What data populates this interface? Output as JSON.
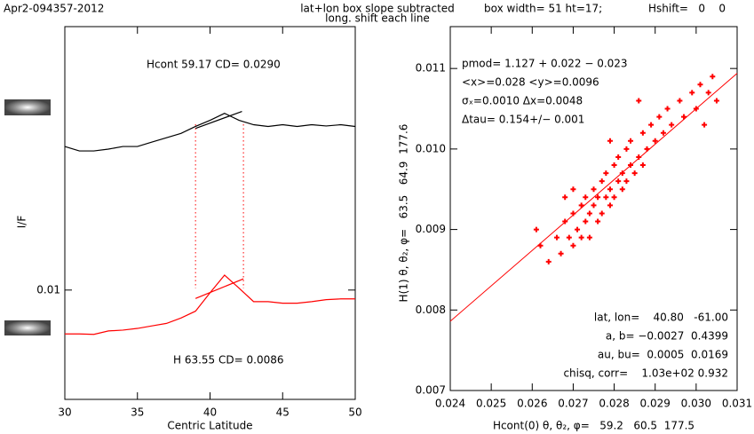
{
  "header": {
    "file": "Apr2-094357-2012",
    "method": "lat+lon box slope subtracted",
    "shift": "long. shift each line",
    "box": "box width= 51 ht=17;",
    "hshift": "Hshift=   0    0"
  },
  "chart_data": [
    {
      "type": "line",
      "xlabel": "Centric Latitude",
      "ylabel": "I/F",
      "log_y": true,
      "xlim": [
        30,
        50
      ],
      "xticks": [
        30,
        35,
        40,
        45,
        50
      ],
      "ylim": [
        0.0075,
        0.02
      ],
      "yticks": [
        0.01
      ],
      "vlines": [
        39,
        42.3
      ],
      "vline_color": "#ff0000",
      "annotations": [
        {
          "text": "Hcont 59.17 CD= 0.0290",
          "color": "#000000"
        },
        {
          "text": "H 63.55 CD= 0.0086",
          "color": "#ff0000"
        }
      ],
      "series": [
        {
          "color": "#000000",
          "x": [
            30,
            31,
            32,
            33,
            34,
            35,
            36,
            37,
            38,
            39,
            40,
            41,
            42,
            43,
            44,
            45,
            46,
            47,
            48,
            49,
            50
          ],
          "values": [
            0.01459,
            0.01442,
            0.01442,
            0.01449,
            0.01459,
            0.01459,
            0.01476,
            0.01493,
            0.0151,
            0.01538,
            0.01563,
            0.01592,
            0.01563,
            0.01545,
            0.01538,
            0.01545,
            0.01538,
            0.01545,
            0.0154,
            0.01545,
            0.01538
          ]
        },
        {
          "color": "#000000",
          "x": [
            39,
            42.2
          ],
          "values": [
            0.0153,
            0.016
          ]
        },
        {
          "color": "#ff0000",
          "x": [
            30,
            31,
            32,
            33,
            34,
            35,
            36,
            37,
            38,
            39,
            40,
            41,
            42,
            43,
            44,
            45,
            46,
            47,
            48,
            49,
            50
          ],
          "values": [
            0.00891,
            0.00891,
            0.0089,
            0.00898,
            0.009,
            0.00904,
            0.0091,
            0.00916,
            0.00929,
            0.00946,
            0.00993,
            0.0104,
            0.01005,
            0.0097,
            0.0097,
            0.00966,
            0.00966,
            0.0097,
            0.00975,
            0.00977,
            0.00977
          ]
        },
        {
          "color": "#ff0000",
          "x": [
            39,
            42.3
          ],
          "values": [
            0.00978,
            0.0103
          ]
        }
      ]
    },
    {
      "type": "scatter",
      "xlabel": "Hcont(0) θ, θ₂, φ=   59.2   60.5  177.5",
      "ylabel": "H(1) θ, θ₂, φ=   63.5   64.9  177.6",
      "xlim": [
        0.024,
        0.031
      ],
      "xticks": [
        0.024,
        0.025,
        0.026,
        0.027,
        0.028,
        0.029,
        {
          "value": 0.03,
          "label": "0.030"
        },
        0.031
      ],
      "ylim": [
        0.007,
        0.01152
      ],
      "yticks": [
        0.007,
        0.008,
        0.009,
        {
          "value": 0.01,
          "label": "0.010"
        },
        0.011
      ],
      "notes_top": [
        "pmod= 1.127 + 0.022 − 0.023",
        "<x>=0.028 <y>=0.0096",
        "σₓ=0.0010 Δx=0.0048",
        "Δtau= 0.154+/− 0.001"
      ],
      "notes_top_color": "#ff0000",
      "notes_bottom": [
        {
          "text": "lat, lon=    40.80   -61.00",
          "color": "#000000"
        },
        {
          "text": "a, b= −0.0027  0.4399",
          "color": "#000000"
        },
        {
          "text": "au, bu=  0.0005  0.0169",
          "color": "#000000"
        },
        {
          "text": "chisq, corr=    1.03e+02 0.932",
          "color": "#ff0000"
        }
      ],
      "series": [
        {
          "color": "#ff0000",
          "x": [
            0.0264,
            0.0266,
            0.0267,
            0.0268,
            0.0269,
            0.027,
            0.027,
            0.0271,
            0.0272,
            0.0272,
            0.0273,
            0.0273,
            0.0274,
            0.0274,
            0.0275,
            0.0275,
            0.0276,
            0.0276,
            0.0277,
            0.0277,
            0.0278,
            0.0278,
            0.0279,
            0.0279,
            0.028,
            0.028,
            0.0281,
            0.0281,
            0.0282,
            0.0282,
            0.0283,
            0.0283,
            0.0284,
            0.0284,
            0.0285,
            0.0286,
            0.0287,
            0.0287,
            0.0288,
            0.0289,
            0.029,
            0.0291,
            0.0292,
            0.0293,
            0.0294,
            0.0296,
            0.0297,
            0.0299,
            0.03,
            0.0301,
            0.0302,
            0.0303,
            0.0304,
            0.0305,
            0.0261,
            0.0262,
            0.0268,
            0.0286,
            0.027,
            0.0279
          ],
          "values": [
            0.0086,
            0.0089,
            0.0087,
            0.0091,
            0.0089,
            0.0092,
            0.0088,
            0.009,
            0.0093,
            0.0089,
            0.0091,
            0.0094,
            0.0092,
            0.0089,
            0.0093,
            0.0095,
            0.0091,
            0.0094,
            0.0096,
            0.0092,
            0.0094,
            0.0097,
            0.0093,
            0.0095,
            0.0098,
            0.0094,
            0.0096,
            0.0099,
            0.0095,
            0.0097,
            0.01,
            0.0096,
            0.0098,
            0.0101,
            0.0097,
            0.0099,
            0.0102,
            0.0098,
            0.01,
            0.0103,
            0.0101,
            0.0104,
            0.0102,
            0.0105,
            0.0103,
            0.0106,
            0.0104,
            0.0107,
            0.0105,
            0.0108,
            0.0103,
            0.0107,
            0.0109,
            0.0106,
            0.009,
            0.0088,
            0.0094,
            0.0106,
            0.0095,
            0.0101
          ]
        },
        {
          "color": "#ff0000",
          "line": true,
          "x": [
            0.024,
            0.031
          ],
          "values": [
            0.00786,
            0.01094
          ]
        }
      ]
    }
  ]
}
